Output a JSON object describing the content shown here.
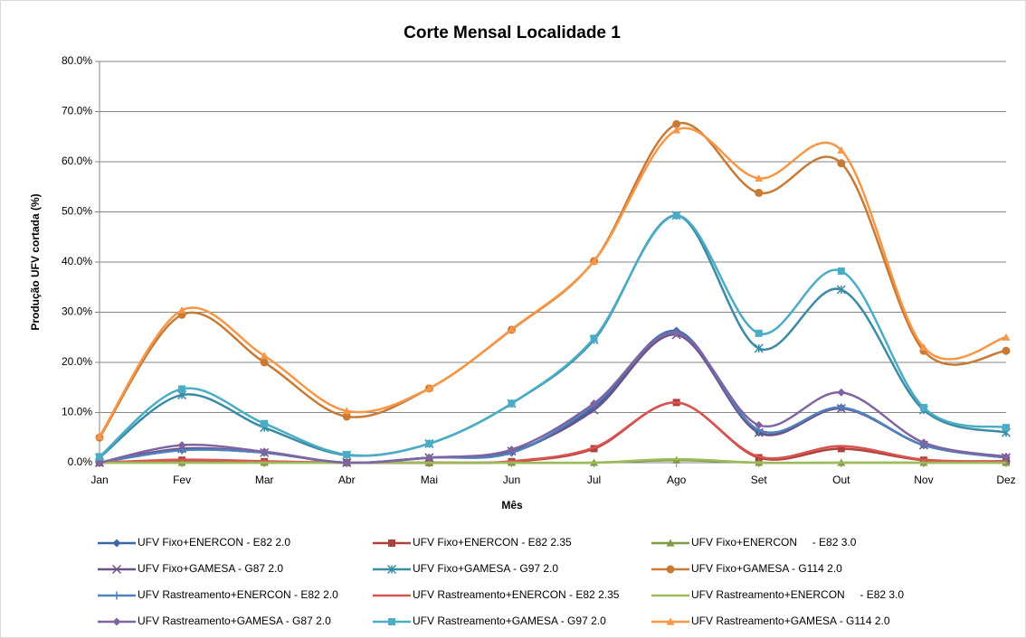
{
  "chart_data": {
    "type": "line",
    "title": "Corte Mensal Localidade 1",
    "x_label": "Mês",
    "y_label": "Produção UFV cortada (%)",
    "categories": [
      "Jan",
      "Fev",
      "Mar",
      "Abr",
      "Mai",
      "Jun",
      "Jul",
      "Ago",
      "Set",
      "Out",
      "Nov",
      "Dez"
    ],
    "ylim": [
      0,
      80
    ],
    "yticks": [
      {
        "value": 0,
        "label": "0.0%"
      },
      {
        "value": 10,
        "label": "10.0%"
      },
      {
        "value": 20,
        "label": "20.0%"
      },
      {
        "value": 30,
        "label": "30.0%"
      },
      {
        "value": 40,
        "label": "40.0%"
      },
      {
        "value": 50,
        "label": "50.0%"
      },
      {
        "value": 60,
        "label": "60.0%"
      },
      {
        "value": 70,
        "label": "70.0%"
      },
      {
        "value": 80,
        "label": "80.0%"
      }
    ],
    "grid": true,
    "smooth": true,
    "legend": "bottom",
    "series": [
      {
        "name": "UFV Fixo+ENERCON - E82 2.0",
        "color": "#3A67A8",
        "marker": "diamond",
        "values": [
          0,
          2.5,
          2,
          0,
          1,
          2,
          11,
          26.3,
          6,
          11,
          3.5,
          1
        ]
      },
      {
        "name": "UFV Fixo+ENERCON - E82 2.35",
        "color": "#B0403C",
        "marker": "square",
        "values": [
          0,
          0.5,
          0.2,
          0,
          0,
          0.2,
          2.8,
          12,
          1,
          2.8,
          0.5,
          0.2
        ]
      },
      {
        "name": "UFV Fixo+ENERCON     - E82 3.0",
        "color": "#7D9C44",
        "marker": "triangle",
        "values": [
          0,
          0,
          0,
          0,
          0,
          0,
          0,
          0.5,
          0,
          0,
          0,
          0
        ]
      },
      {
        "name": "UFV Fixo+GAMESA - G87 2.0",
        "color": "#6A5289",
        "marker": "x",
        "values": [
          0,
          2.8,
          2,
          0,
          1,
          2.3,
          10.5,
          25.5,
          6,
          10.8,
          3.5,
          1
        ]
      },
      {
        "name": "UFV Fixo+GAMESA - G97 2.0",
        "color": "#3A8BA3",
        "marker": "star",
        "values": [
          1,
          13.5,
          7,
          1.5,
          3.8,
          11.8,
          24.5,
          49.3,
          22.8,
          34.5,
          10.5,
          6
        ]
      },
      {
        "name": "UFV Fixo+GAMESA - G114 2.0",
        "color": "#C77A35",
        "marker": "circle",
        "values": [
          5,
          29.5,
          20,
          9.2,
          14.8,
          26.5,
          40.2,
          67.5,
          53.8,
          59.7,
          22.3,
          22.3
        ]
      },
      {
        "name": "UFV Rastreamento+ENERCON - E82 2.0",
        "color": "#4F81BD",
        "marker": "plus",
        "values": [
          0,
          2.5,
          2,
          0,
          1,
          2,
          11.5,
          26,
          6.5,
          11,
          3.5,
          1
        ]
      },
      {
        "name": "UFV Rastreamento+ENERCON - E82 2.35",
        "color": "#D9534F",
        "marker": "none",
        "values": [
          0,
          0.6,
          0.3,
          0,
          0,
          0.3,
          3,
          12,
          1.2,
          3.3,
          0.6,
          0.3
        ]
      },
      {
        "name": "UFV Rastreamento+ENERCON     - E82 3.0",
        "color": "#9BBB59",
        "marker": "none",
        "values": [
          0,
          0,
          0,
          0,
          0,
          0,
          0,
          0.7,
          0,
          0,
          0,
          0
        ]
      },
      {
        "name": "UFV Rastreamento+GAMESA - G87 2.0",
        "color": "#8064A2",
        "marker": "diamond",
        "values": [
          0,
          3.5,
          2.2,
          0,
          1,
          2.6,
          11.8,
          25.8,
          7.5,
          14,
          4,
          1.2
        ]
      },
      {
        "name": "UFV Rastreamento+GAMESA - G97 2.0",
        "color": "#4BACC6",
        "marker": "square",
        "values": [
          1.2,
          14.7,
          7.8,
          1.6,
          3.8,
          11.8,
          24.8,
          49.3,
          25.8,
          38.2,
          11,
          7
        ]
      },
      {
        "name": "UFV Rastreamento+GAMESA - G114 2.0",
        "color": "#F79646",
        "marker": "triangle",
        "values": [
          5.2,
          30.4,
          21.3,
          10.3,
          14.8,
          26.6,
          40.2,
          66.3,
          56.7,
          62.3,
          23,
          25
        ]
      }
    ]
  }
}
